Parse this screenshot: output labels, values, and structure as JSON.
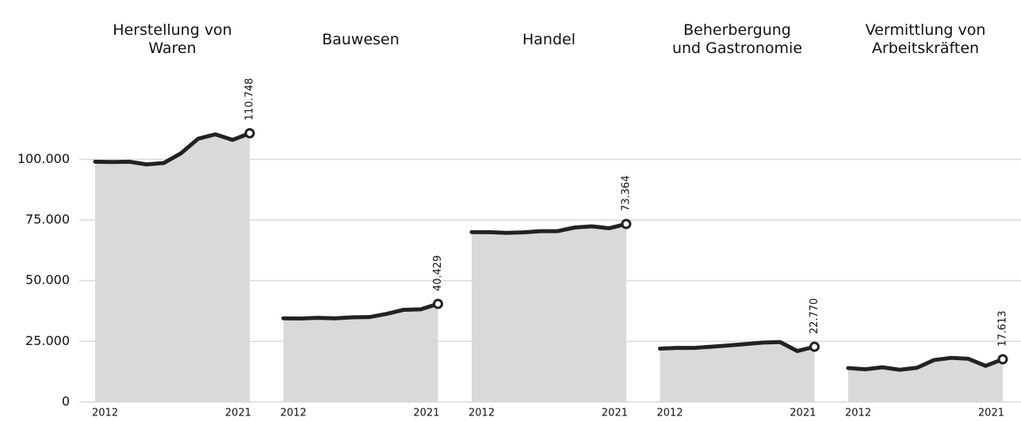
{
  "chart_data": [
    {
      "type": "area",
      "title": "Herstellung von Waren",
      "x": [
        2012,
        2013,
        2014,
        2015,
        2016,
        2017,
        2018,
        2019,
        2020,
        2021
      ],
      "values": [
        99000,
        98900,
        99000,
        97900,
        98500,
        102500,
        108500,
        110300,
        108000,
        110748
      ],
      "value_labels": [
        null,
        null,
        null,
        null,
        null,
        null,
        null,
        null,
        null,
        "110.748"
      ],
      "xticks": [
        2012,
        2021
      ],
      "ylim": [
        0,
        150000
      ],
      "yticks": [
        0,
        {
          "value": 25000,
          "label": "25.000"
        },
        {
          "value": 50000,
          "label": "50.000"
        },
        {
          "value": 75000,
          "label": "75.000"
        },
        {
          "value": 100000,
          "label": "100.000"
        }
      ],
      "grid": true,
      "color": "#d9d9d9",
      "line_color": "#222222"
    },
    {
      "type": "area",
      "title": "Bauwesen",
      "x": [
        2012,
        2013,
        2014,
        2015,
        2016,
        2017,
        2018,
        2019,
        2020,
        2021
      ],
      "values": [
        34500,
        34400,
        34700,
        34500,
        34900,
        35000,
        36300,
        38000,
        38200,
        40429
      ],
      "value_labels": [
        null,
        null,
        null,
        null,
        null,
        null,
        null,
        null,
        null,
        "40.429"
      ],
      "xticks": [
        2012,
        2021
      ],
      "ylim": [
        0,
        150000
      ],
      "color": "#d9d9d9",
      "line_color": "#222222"
    },
    {
      "type": "area",
      "title": "Handel",
      "x": [
        2012,
        2013,
        2014,
        2015,
        2016,
        2017,
        2018,
        2019,
        2020,
        2021
      ],
      "values": [
        70000,
        70000,
        69700,
        69900,
        70400,
        70400,
        71900,
        72400,
        71600,
        73364
      ],
      "value_labels": [
        null,
        null,
        null,
        null,
        null,
        null,
        null,
        null,
        null,
        "73.364"
      ],
      "xticks": [
        2012,
        2021
      ],
      "ylim": [
        0,
        150000
      ],
      "color": "#d9d9d9",
      "line_color": "#222222"
    },
    {
      "type": "area",
      "title": "Beherbergung und Gastronomie",
      "x": [
        2012,
        2013,
        2014,
        2015,
        2016,
        2017,
        2018,
        2019,
        2020,
        2021
      ],
      "values": [
        22000,
        22300,
        22300,
        22800,
        23300,
        23900,
        24500,
        24700,
        21000,
        22770
      ],
      "value_labels": [
        null,
        null,
        null,
        null,
        null,
        null,
        null,
        null,
        null,
        "22.770"
      ],
      "xticks": [
        2012,
        2021
      ],
      "ylim": [
        0,
        150000
      ],
      "color": "#d9d9d9",
      "line_color": "#222222"
    },
    {
      "type": "area",
      "title": "Vermittlung von Arbeitskräften",
      "x": [
        2012,
        2013,
        2014,
        2015,
        2016,
        2017,
        2018,
        2019,
        2020,
        2021
      ],
      "values": [
        14000,
        13500,
        14300,
        13300,
        14100,
        17300,
        18200,
        17800,
        14900,
        17613
      ],
      "value_labels": [
        null,
        null,
        null,
        null,
        null,
        null,
        null,
        null,
        null,
        "17.613"
      ],
      "xticks": [
        2012,
        2021
      ],
      "ylim": [
        0,
        150000
      ],
      "color": "#d9d9d9",
      "line_color": "#222222"
    }
  ]
}
